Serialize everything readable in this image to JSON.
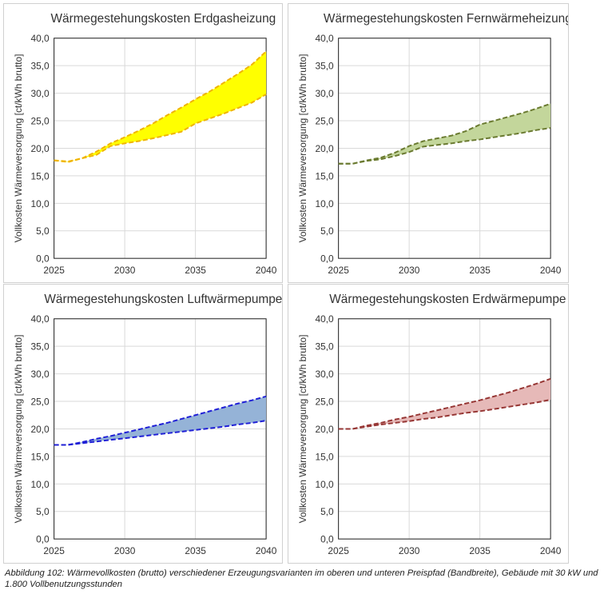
{
  "caption": "Abbildung 102: Wärmevollkosten (brutto) verschiedener Erzeugungsvarianten im oberen und unteren Preispfad (Bandbreite), Gebäude mit 30 kW und 1.800 Vollbenutzungsstunden",
  "chart_data": [
    {
      "type": "area",
      "title": "Wärmegestehungskosten Erdgasheizung",
      "ylabel": "Vollkosten Wärmeversorgung [ct/kWh brutto]",
      "xlabel": "",
      "xlim": [
        2025,
        2040
      ],
      "ylim": [
        0,
        40
      ],
      "xticks": [
        "2025",
        "2030",
        "2035",
        "2040"
      ],
      "yticks": [
        "0,0",
        "5,0",
        "10,0",
        "15,0",
        "20,0",
        "25,0",
        "30,0",
        "35,0",
        "40,0"
      ],
      "grid": true,
      "fill_color": "#ffff00",
      "line_color": "#f0b400",
      "x": [
        2025,
        2026,
        2027,
        2028,
        2029,
        2030,
        2031,
        2032,
        2033,
        2034,
        2035,
        2036,
        2037,
        2038,
        2039,
        2040
      ],
      "series": [
        {
          "values": [
            17.8,
            17.5,
            18.2,
            18.8,
            20.4,
            20.9,
            21.3,
            21.8,
            22.4,
            23.0,
            24.5,
            25.4,
            26.3,
            27.3,
            28.3,
            29.8
          ]
        },
        {
          "values": [
            17.8,
            17.6,
            18.2,
            19.4,
            20.9,
            22.0,
            23.2,
            24.5,
            26.0,
            27.4,
            28.9,
            30.3,
            31.9,
            33.5,
            35.2,
            37.6
          ]
        }
      ]
    },
    {
      "type": "area",
      "title": "Wärmegestehungskosten Fernwärmeheizung",
      "ylabel": "Vollkosten Wärmeversorgung [ct/kWh brutto]",
      "xlabel": "",
      "xlim": [
        2025,
        2040
      ],
      "ylim": [
        0,
        40
      ],
      "xticks": [
        "2025",
        "2030",
        "2035",
        "2040"
      ],
      "yticks": [
        "0,0",
        "5,0",
        "10,0",
        "15,0",
        "20,0",
        "25,0",
        "30,0",
        "35,0",
        "40,0"
      ],
      "grid": true,
      "fill_color": "#c3d69b",
      "line_color": "#6a7a30",
      "x": [
        2025,
        2026,
        2027,
        2028,
        2029,
        2030,
        2031,
        2032,
        2033,
        2034,
        2035,
        2036,
        2037,
        2038,
        2039,
        2040
      ],
      "series": [
        {
          "values": [
            17.2,
            17.2,
            17.7,
            18.0,
            18.6,
            19.3,
            20.3,
            20.6,
            20.9,
            21.3,
            21.6,
            22.0,
            22.4,
            22.8,
            23.3,
            23.7
          ]
        },
        {
          "values": [
            17.2,
            17.2,
            17.8,
            18.3,
            19.2,
            20.4,
            21.3,
            21.8,
            22.3,
            23.1,
            24.3,
            25.0,
            25.7,
            26.4,
            27.2,
            28.1
          ]
        }
      ]
    },
    {
      "type": "area",
      "title": "Wärmegestehungskosten Luftwärmepumpe",
      "ylabel": "Vollkosten Wärmeversorgung [ct/kWh brutto]",
      "xlabel": "",
      "xlim": [
        2025,
        2040
      ],
      "ylim": [
        0,
        40
      ],
      "xticks": [
        "2025",
        "2030",
        "2035",
        "2040"
      ],
      "yticks": [
        "0,0",
        "5,0",
        "10,0",
        "15,0",
        "20,0",
        "25,0",
        "30,0",
        "35,0",
        "40,0"
      ],
      "grid": true,
      "fill_color": "#95b3d7",
      "line_color": "#1f1fd6",
      "x": [
        2025,
        2026,
        2027,
        2028,
        2029,
        2030,
        2031,
        2032,
        2033,
        2034,
        2035,
        2036,
        2037,
        2038,
        2039,
        2040
      ],
      "series": [
        {
          "values": [
            17.1,
            17.1,
            17.4,
            17.7,
            18.0,
            18.3,
            18.6,
            18.9,
            19.2,
            19.5,
            19.8,
            20.1,
            20.4,
            20.8,
            21.1,
            21.5
          ]
        },
        {
          "values": [
            17.1,
            17.1,
            17.6,
            18.2,
            18.7,
            19.3,
            19.9,
            20.5,
            21.1,
            21.8,
            22.5,
            23.2,
            23.9,
            24.6,
            25.2,
            25.9
          ]
        }
      ]
    },
    {
      "type": "area",
      "title": "Wärmegestehungskosten Erdwärmepumpe",
      "ylabel": "Vollkosten Wärmeversorgung [ct/kWh brutto]",
      "xlabel": "",
      "xlim": [
        2025,
        2040
      ],
      "ylim": [
        0,
        40
      ],
      "xticks": [
        "2025",
        "2030",
        "2035",
        "2040"
      ],
      "yticks": [
        "0,0",
        "5,0",
        "10,0",
        "15,0",
        "20,0",
        "25,0",
        "30,0",
        "35,0",
        "40,0"
      ],
      "grid": true,
      "fill_color": "#e6b9b8",
      "line_color": "#963634",
      "x": [
        2025,
        2026,
        2027,
        2028,
        2029,
        2030,
        2031,
        2032,
        2033,
        2034,
        2035,
        2036,
        2037,
        2038,
        2039,
        2040
      ],
      "series": [
        {
          "values": [
            20.0,
            20.0,
            20.4,
            20.8,
            21.1,
            21.4,
            21.8,
            22.1,
            22.5,
            22.9,
            23.2,
            23.6,
            24.0,
            24.4,
            24.8,
            25.3
          ]
        },
        {
          "values": [
            20.0,
            20.0,
            20.6,
            21.1,
            21.7,
            22.2,
            22.8,
            23.4,
            24.0,
            24.6,
            25.2,
            25.9,
            26.6,
            27.4,
            28.2,
            29.1
          ]
        }
      ]
    }
  ]
}
